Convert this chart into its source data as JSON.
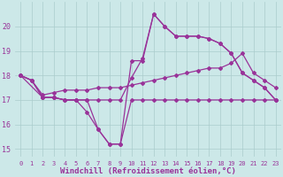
{
  "xlabel": "Windchill (Refroidissement éolien,°C)",
  "xlim": [
    -0.5,
    23.5
  ],
  "ylim": [
    14.7,
    21.0
  ],
  "yticks": [
    15,
    16,
    17,
    18,
    19,
    20
  ],
  "xticks": [
    0,
    1,
    2,
    3,
    4,
    5,
    6,
    7,
    8,
    9,
    10,
    11,
    12,
    13,
    14,
    15,
    16,
    17,
    18,
    19,
    20,
    21,
    22,
    23
  ],
  "bg_color": "#cce8e8",
  "grid_color": "#aacccc",
  "line_color": "#993399",
  "series": [
    {
      "x": [
        0,
        1,
        2,
        3,
        4,
        5,
        6,
        7,
        8,
        9,
        10,
        11,
        12,
        13,
        14,
        15,
        16,
        17,
        18,
        19,
        20,
        21,
        22,
        23
      ],
      "y": [
        18.0,
        17.8,
        17.1,
        17.1,
        17.0,
        17.0,
        16.5,
        15.8,
        15.2,
        15.2,
        17.0,
        17.0,
        17.0,
        17.0,
        17.0,
        17.0,
        17.0,
        17.0,
        17.0,
        17.0,
        17.0,
        17.0,
        17.0,
        17.0
      ]
    },
    {
      "x": [
        0,
        1,
        2,
        3,
        4,
        5,
        6,
        7,
        8,
        9,
        10,
        11,
        12,
        13,
        14,
        15,
        16,
        17,
        18,
        19,
        20,
        21,
        22,
        23
      ],
      "y": [
        18.0,
        17.8,
        17.1,
        17.1,
        17.0,
        17.0,
        17.0,
        17.0,
        17.0,
        17.0,
        17.9,
        18.7,
        20.5,
        20.0,
        19.6,
        19.6,
        19.6,
        19.5,
        19.3,
        18.9,
        18.1,
        17.8,
        17.5,
        17.0
      ]
    },
    {
      "x": [
        0,
        1,
        2,
        3,
        4,
        5,
        6,
        7,
        8,
        9,
        10,
        11,
        12,
        13,
        14,
        15,
        16,
        17,
        18,
        19,
        20,
        21,
        22,
        23
      ],
      "y": [
        18.0,
        17.8,
        17.2,
        17.3,
        17.4,
        17.4,
        17.4,
        17.5,
        17.5,
        17.5,
        17.6,
        17.7,
        17.8,
        17.9,
        18.0,
        18.1,
        18.2,
        18.3,
        18.3,
        18.5,
        18.9,
        18.1,
        17.8,
        17.5
      ]
    },
    {
      "x": [
        0,
        2,
        3,
        4,
        5,
        6,
        7,
        8,
        9,
        10,
        11,
        12,
        13,
        14,
        15,
        16,
        17,
        18,
        19,
        20,
        21,
        22,
        23
      ],
      "y": [
        18.0,
        17.1,
        17.1,
        17.0,
        17.0,
        17.0,
        15.8,
        15.2,
        15.2,
        18.6,
        18.6,
        20.5,
        20.0,
        19.6,
        19.6,
        19.6,
        19.5,
        19.3,
        18.9,
        18.1,
        17.8,
        17.5,
        17.0
      ]
    }
  ]
}
